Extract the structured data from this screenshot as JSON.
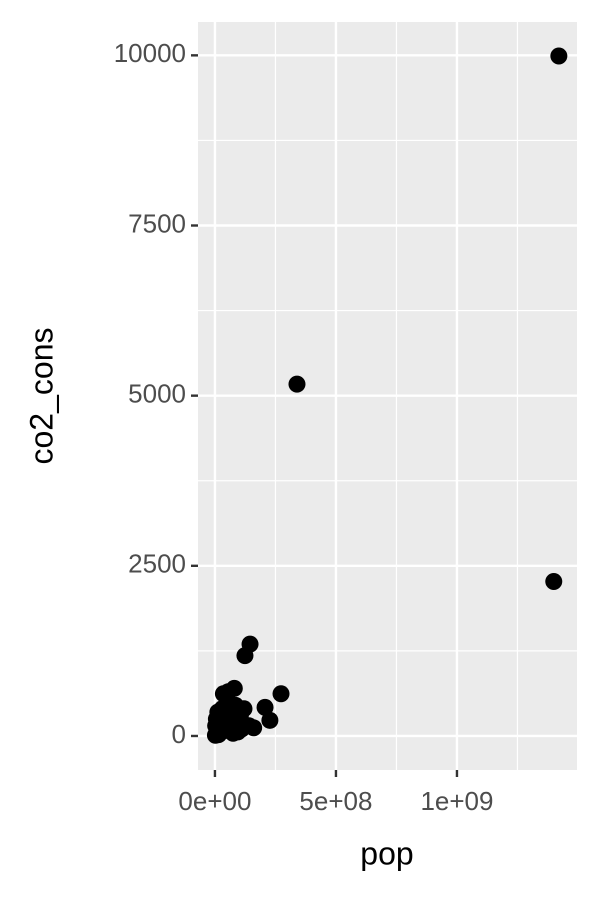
{
  "chart_data": {
    "type": "scatter",
    "x_label": "pop",
    "y_label": "co2_cons",
    "color": "#000000",
    "xlim": [
      -70000000,
      1496000000
    ],
    "ylim": [
      -500,
      10490
    ],
    "xticks": [
      {
        "value": 0,
        "label": "0e+00"
      },
      {
        "value": 500000000,
        "label": "5e+08"
      },
      {
        "value": 1000000000,
        "label": "1e+09"
      }
    ],
    "yticks": [
      0,
      2500,
      5000,
      7500,
      10000
    ],
    "grid": true,
    "x": [
      1421000000,
      339000000,
      1400000000,
      145000000,
      124000000,
      273000000,
      207000000,
      227000000,
      2000000,
      5000000,
      8000000,
      10000000,
      15000000,
      20000000,
      25000000,
      30000000,
      35000000,
      40000000,
      45000000,
      50000000,
      55000000,
      60000000,
      65000000,
      70000000,
      75000000,
      80000000,
      85000000,
      90000000,
      95000000,
      105000000,
      110000000,
      120000000,
      140000000,
      160000000,
      3000000,
      6000000,
      12000000,
      18000000
    ],
    "values": [
      9990,
      5170,
      2270,
      1350,
      1180,
      620,
      420,
      230,
      10,
      30,
      60,
      100,
      20,
      150,
      250,
      400,
      620,
      80,
      300,
      500,
      650,
      200,
      120,
      350,
      40,
      700,
      450,
      180,
      60,
      300,
      100,
      400,
      150,
      120,
      150,
      250,
      350,
      50
    ]
  }
}
